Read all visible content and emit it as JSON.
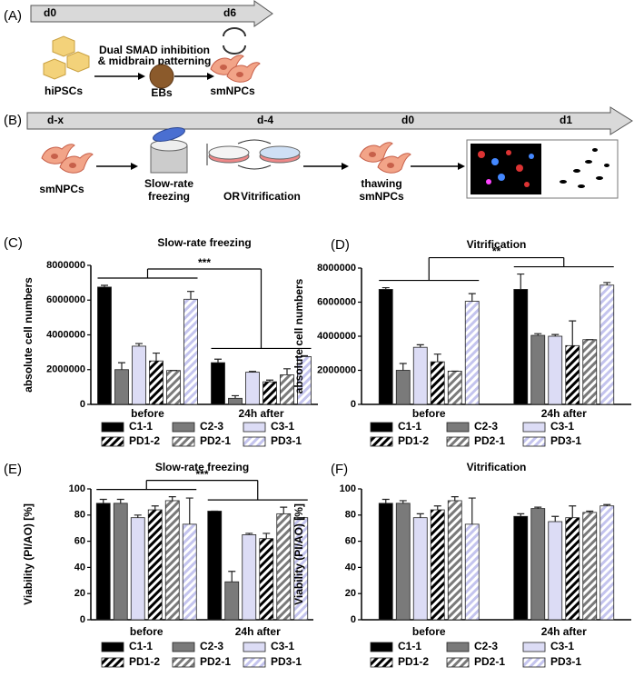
{
  "schematic_a": {
    "label": "(A)",
    "days": [
      "d0",
      "d6"
    ],
    "treatment": [
      "Dual SMAD inhibition",
      "& midbrain patterning"
    ],
    "stages": [
      "hiPSCs",
      "EBs",
      "smNPCs"
    ]
  },
  "schematic_b": {
    "label": "(B)",
    "days": [
      "d-x",
      "d-4",
      "d0",
      "d1"
    ],
    "start": "smNPCs",
    "freezing": [
      "Slow-rate",
      "freezing"
    ],
    "or": "OR",
    "vitrification": "Vitrification",
    "thawed": [
      "thawing",
      "smNPCs"
    ]
  },
  "chart_data": [
    {
      "type": "bar",
      "panel": "(C)",
      "title": "Slow-rate freezing",
      "ylabel": "absolute cell numbers",
      "categories": [
        "before",
        "24h after"
      ],
      "ylim": [
        0,
        8000000
      ],
      "yticks": [
        0,
        2000000,
        4000000,
        6000000,
        8000000
      ],
      "significance": "***",
      "legend": "bottom",
      "series": [
        {
          "name": "C1-1",
          "color": "#000000",
          "hatched": false,
          "values": [
            6750000,
            2400000
          ],
          "errors": [
            100000,
            200000
          ]
        },
        {
          "name": "C2-3",
          "color": "#7a7a7a",
          "hatched": false,
          "values": [
            2000000,
            350000
          ],
          "errors": [
            400000,
            150000
          ]
        },
        {
          "name": "C3-1",
          "color": "#dcdcf5",
          "hatched": false,
          "values": [
            3350000,
            1850000
          ],
          "errors": [
            150000,
            50000
          ]
        },
        {
          "name": "PD1-2",
          "color": "#000000",
          "hatched": true,
          "values": [
            2500000,
            1300000
          ],
          "errors": [
            450000,
            100000
          ]
        },
        {
          "name": "PD2-1",
          "color": "#7a7a7a",
          "hatched": true,
          "values": [
            1950000,
            1700000
          ],
          "errors": [
            0,
            350000
          ]
        },
        {
          "name": "PD3-1",
          "color": "#dcdcf5",
          "hatched": true,
          "values": [
            6050000,
            2750000
          ],
          "errors": [
            450000,
            50000
          ]
        }
      ]
    },
    {
      "type": "bar",
      "panel": "(D)",
      "title": "Vitrification",
      "ylabel": "absolute cell numbers",
      "categories": [
        "before",
        "24h after"
      ],
      "ylim": [
        0,
        8000000
      ],
      "yticks": [
        0,
        2000000,
        4000000,
        6000000,
        8000000
      ],
      "significance": "**",
      "legend": "bottom",
      "series": [
        {
          "name": "C1-1",
          "color": "#000000",
          "hatched": false,
          "values": [
            6750000,
            6750000
          ],
          "errors": [
            100000,
            900000
          ]
        },
        {
          "name": "C2-3",
          "color": "#7a7a7a",
          "hatched": false,
          "values": [
            2000000,
            4050000
          ],
          "errors": [
            400000,
            100000
          ]
        },
        {
          "name": "C3-1",
          "color": "#dcdcf5",
          "hatched": false,
          "values": [
            3350000,
            4000000
          ],
          "errors": [
            150000,
            100000
          ]
        },
        {
          "name": "PD1-2",
          "color": "#000000",
          "hatched": true,
          "values": [
            2500000,
            3450000
          ],
          "errors": [
            450000,
            1450000
          ]
        },
        {
          "name": "PD2-1",
          "color": "#7a7a7a",
          "hatched": true,
          "values": [
            1950000,
            3800000
          ],
          "errors": [
            0,
            0
          ]
        },
        {
          "name": "PD3-1",
          "color": "#dcdcf5",
          "hatched": true,
          "values": [
            6050000,
            7000000
          ],
          "errors": [
            450000,
            150000
          ]
        }
      ]
    },
    {
      "type": "bar",
      "panel": "(E)",
      "title": "Slow-rate freezing",
      "ylabel": "Viability (PI/AO) [%]",
      "categories": [
        "before",
        "24h after"
      ],
      "ylim": [
        0,
        100
      ],
      "yticks": [
        0,
        20,
        40,
        60,
        80,
        100
      ],
      "significance": "***",
      "legend": "bottom",
      "series": [
        {
          "name": "C1-1",
          "color": "#000000",
          "hatched": false,
          "values": [
            89,
            83
          ],
          "errors": [
            3,
            0
          ]
        },
        {
          "name": "C2-3",
          "color": "#7a7a7a",
          "hatched": false,
          "values": [
            89,
            29
          ],
          "errors": [
            3,
            8
          ]
        },
        {
          "name": "C3-1",
          "color": "#dcdcf5",
          "hatched": false,
          "values": [
            78,
            65
          ],
          "errors": [
            2,
            1
          ]
        },
        {
          "name": "PD1-2",
          "color": "#000000",
          "hatched": true,
          "values": [
            84,
            62
          ],
          "errors": [
            3,
            4
          ]
        },
        {
          "name": "PD2-1",
          "color": "#7a7a7a",
          "hatched": true,
          "values": [
            91,
            81
          ],
          "errors": [
            3,
            5
          ]
        },
        {
          "name": "PD3-1",
          "color": "#dcdcf5",
          "hatched": true,
          "values": [
            73,
            78
          ],
          "errors": [
            20,
            0
          ]
        }
      ]
    },
    {
      "type": "bar",
      "panel": "(F)",
      "title": "Vitrification",
      "ylabel": "Viability (PI/AO) [%]",
      "categories": [
        "before",
        "24h after"
      ],
      "ylim": [
        0,
        100
      ],
      "yticks": [
        0,
        20,
        40,
        60,
        80,
        100
      ],
      "legend": "bottom",
      "series": [
        {
          "name": "C1-1",
          "color": "#000000",
          "hatched": false,
          "values": [
            89,
            79
          ],
          "errors": [
            3,
            2
          ]
        },
        {
          "name": "C2-3",
          "color": "#7a7a7a",
          "hatched": false,
          "values": [
            89,
            85
          ],
          "errors": [
            2,
            1
          ]
        },
        {
          "name": "C3-1",
          "color": "#dcdcf5",
          "hatched": false,
          "values": [
            78,
            75
          ],
          "errors": [
            3,
            4
          ]
        },
        {
          "name": "PD1-2",
          "color": "#000000",
          "hatched": true,
          "values": [
            84,
            78
          ],
          "errors": [
            3,
            9
          ]
        },
        {
          "name": "PD2-1",
          "color": "#7a7a7a",
          "hatched": true,
          "values": [
            91,
            82
          ],
          "errors": [
            3,
            1
          ]
        },
        {
          "name": "PD3-1",
          "color": "#dcdcf5",
          "hatched": true,
          "values": [
            73,
            87
          ],
          "errors": [
            20,
            1
          ]
        }
      ]
    }
  ]
}
